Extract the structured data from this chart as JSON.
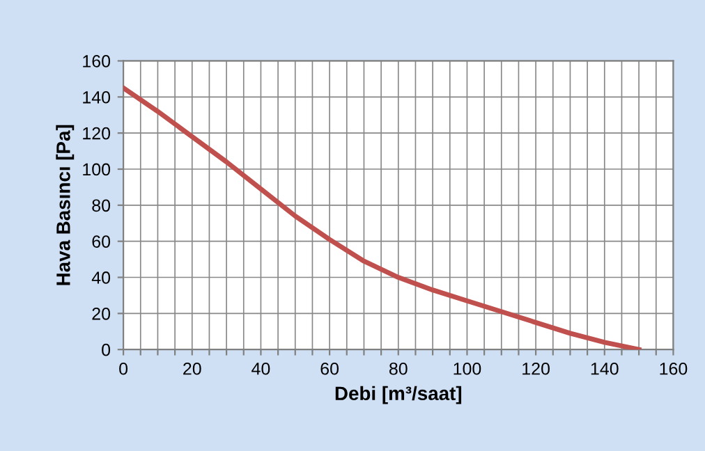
{
  "chart_data": {
    "type": "line",
    "xlabel": "Debi [m³/saat]",
    "ylabel": "Hava Basıncı [Pa]",
    "x": [
      0,
      10,
      20,
      30,
      40,
      50,
      60,
      70,
      80,
      90,
      100,
      110,
      120,
      130,
      140,
      150
    ],
    "series": [
      {
        "color": "#c0504d",
        "values": [
          145,
          132,
          118,
          104,
          89,
          74,
          61,
          49,
          40,
          33,
          27,
          21,
          15,
          9,
          4,
          0
        ]
      }
    ],
    "xlim": [
      0,
      160
    ],
    "ylim": [
      0,
      160
    ],
    "xticks": [
      0,
      {
        "value": 5,
        "label": null
      },
      {
        "value": 10,
        "label": null
      },
      {
        "value": 15,
        "label": null
      },
      20,
      {
        "value": 25,
        "label": null
      },
      {
        "value": 30,
        "label": null
      },
      {
        "value": 35,
        "label": null
      },
      40,
      {
        "value": 45,
        "label": null
      },
      {
        "value": 50,
        "label": null
      },
      {
        "value": 55,
        "label": null
      },
      60,
      {
        "value": 65,
        "label": null
      },
      {
        "value": 70,
        "label": null
      },
      {
        "value": 75,
        "label": null
      },
      80,
      {
        "value": 85,
        "label": null
      },
      {
        "value": 90,
        "label": null
      },
      {
        "value": 95,
        "label": null
      },
      100,
      {
        "value": 105,
        "label": null
      },
      {
        "value": 110,
        "label": null
      },
      {
        "value": 115,
        "label": null
      },
      120,
      {
        "value": 125,
        "label": null
      },
      {
        "value": 130,
        "label": null
      },
      {
        "value": 135,
        "label": null
      },
      140,
      {
        "value": 145,
        "label": null
      },
      {
        "value": 150,
        "label": null
      },
      {
        "value": 155,
        "label": null
      },
      160
    ],
    "yticks": [
      0,
      20,
      40,
      60,
      80,
      100,
      120,
      140,
      160
    ],
    "grid": true,
    "marker": "none",
    "line_style": "solid"
  }
}
